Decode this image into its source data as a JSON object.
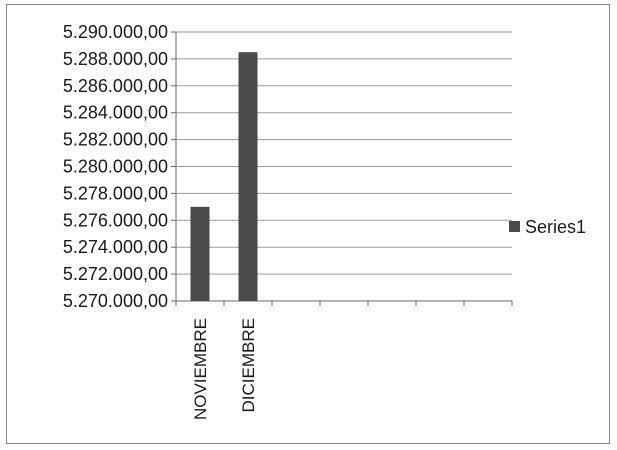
{
  "chart_data": {
    "type": "bar",
    "categories": [
      "NOVIEMBRE",
      "DICIEMBRE",
      "",
      "",
      "",
      "",
      ""
    ],
    "series": [
      {
        "name": "Series1",
        "values": [
          5277000,
          5288500,
          null,
          null,
          null,
          null,
          null
        ]
      }
    ],
    "ylim": [
      5270000,
      5290000
    ],
    "ytick_step": 2000,
    "ytick_labels": [
      "5.270.000,00",
      "5.272.000,00",
      "5.274.000,00",
      "5.276.000,00",
      "5.278.000,00",
      "5.280.000,00",
      "5.282.000,00",
      "5.284.000,00",
      "5.286.000,00",
      "5.288.000,00",
      "5.290.000,00"
    ],
    "grid": true,
    "legend": "right",
    "bar_color": "#4a4a4a",
    "title": "",
    "xlabel": "",
    "ylabel": ""
  }
}
